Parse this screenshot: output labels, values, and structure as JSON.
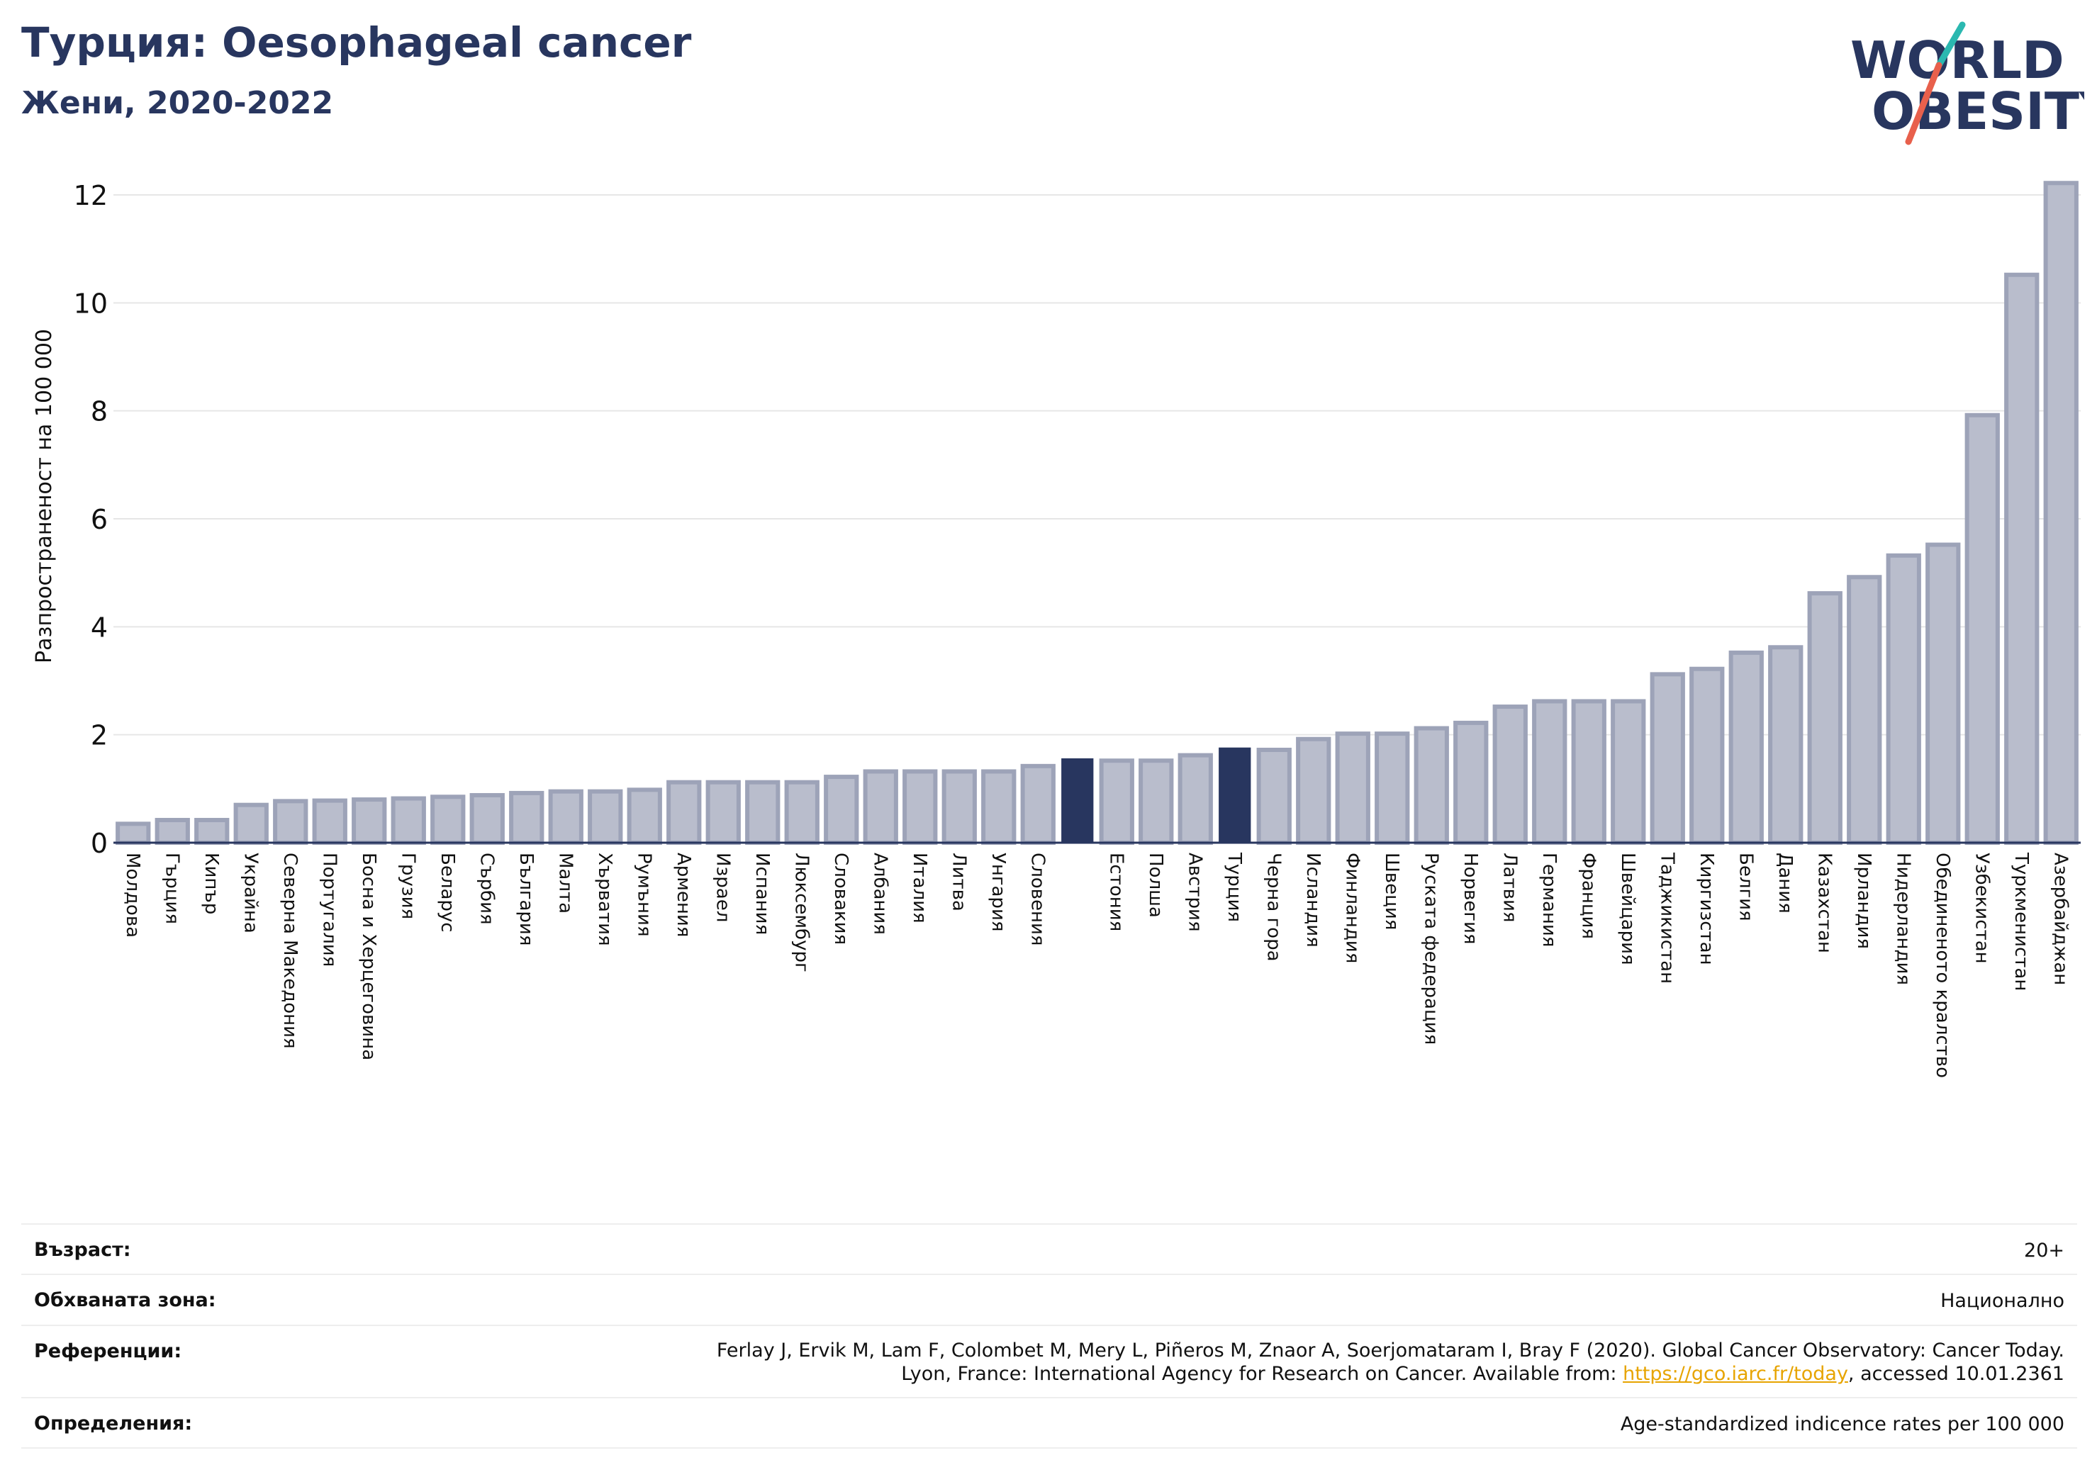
{
  "header": {
    "title": "Турция: Oesophageal cancer",
    "subtitle": "Жени, 2020-2022"
  },
  "logo": {
    "line1": "WORLD",
    "line2": "OBESITY",
    "colors": {
      "text": "#28365f",
      "slash_top": "#2bb8b0",
      "slash_bottom": "#e8604c"
    }
  },
  "chart_data": {
    "type": "bar",
    "ylabel": "Разпространеност  на 100 000",
    "ylim": [
      0,
      12.5
    ],
    "yticks": [
      0,
      2,
      4,
      6,
      8,
      10,
      12
    ],
    "grid": true,
    "colors": {
      "default": "#b9bdcc",
      "default_edge": "#9da3b8",
      "highlight": "#28365f"
    },
    "categories": [
      "Молдова",
      "Гърция",
      "Кипър",
      "Украйна",
      "Северна Македония",
      "Португалия",
      "Босна и Херцеговина",
      "Грузия",
      "Беларус",
      "Сърбия",
      "България",
      "Малта",
      "Хърватия",
      "Румъния",
      "Армения",
      "Израел",
      "Испания",
      "Люксембург",
      "Словакия",
      "Албания",
      "Италия",
      "Литва",
      "Унгария",
      "Словения",
      "",
      "Естония",
      "Полша",
      "Австрия",
      "Турция",
      "Черна гора",
      "Исландия",
      "Финландия",
      "Швеция",
      "Руската федерация",
      "Норвегия",
      "Латвия",
      "Германия",
      "Франция",
      "Швейцария",
      "Таджикистан",
      "Киргизстан",
      "Белгия",
      "Дания",
      "Казахстан",
      "Ирландия",
      "Нидерландия",
      "Обединеното кралство",
      "Узбекистан",
      "Туркменистан",
      "Азербайджан"
    ],
    "values": [
      0.35,
      0.42,
      0.42,
      0.7,
      0.77,
      0.78,
      0.8,
      0.82,
      0.85,
      0.88,
      0.92,
      0.95,
      0.95,
      0.98,
      1.12,
      1.12,
      1.12,
      1.12,
      1.22,
      1.32,
      1.32,
      1.32,
      1.32,
      1.42,
      1.55,
      1.52,
      1.52,
      1.62,
      1.75,
      1.72,
      1.92,
      2.02,
      2.02,
      2.12,
      2.22,
      2.52,
      2.62,
      2.62,
      2.62,
      3.12,
      3.22,
      3.52,
      3.62,
      4.62,
      4.92,
      5.32,
      5.52,
      7.92,
      10.52,
      12.22
    ],
    "highlight": [
      24,
      28
    ]
  },
  "info": {
    "age_label": "Възраст:",
    "age_value": "20+",
    "area_label": "Обхваната зона:",
    "area_value": "Национално",
    "refs_label": "Референции:",
    "refs_line1": "Ferlay J, Ervik M, Lam F, Colombet M, Mery L, Piñeros M, Znaor A, Soerjomataram I, Bray F (2020). Global Cancer Observatory: Cancer Today.",
    "refs_line2_pre": "Lyon, France: International Agency for Research on Cancer. Available from: ",
    "refs_link": "https://gco.iarc.fr/today",
    "refs_line2_post": ", accessed 10.01.2361",
    "def_label": "Определения:",
    "def_value": "Age-standardized indicence rates per 100 000"
  }
}
